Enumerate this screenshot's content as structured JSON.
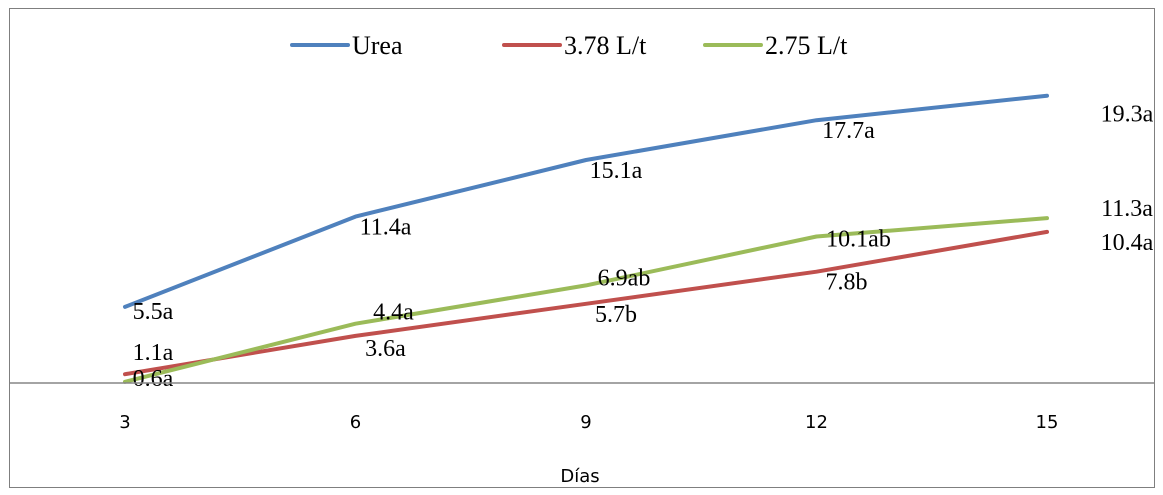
{
  "chart_data": {
    "type": "line",
    "title": "",
    "xlabel": "Días",
    "ylabel": "",
    "x": [
      3,
      6,
      9,
      12,
      15
    ],
    "x_tick_labels": [
      "3",
      "6",
      "9",
      "12",
      "15"
    ],
    "ylim": [
      0,
      20
    ],
    "grid": false,
    "legend_position": "top-center",
    "series": [
      {
        "name": "Urea",
        "color": "#4f81bd",
        "values": [
          5.5,
          11.4,
          15.1,
          17.7,
          19.3
        ],
        "labels": [
          "5.5a",
          "11.4a",
          "15.1a",
          "17.7a",
          "19.3a"
        ]
      },
      {
        "name": "3.78 L/t",
        "color": "#c0504d",
        "values": [
          1.1,
          3.6,
          5.7,
          7.8,
          10.4
        ],
        "labels": [
          "1.1a",
          "3.6a",
          "5.7b",
          "7.8b",
          "10.4a"
        ]
      },
      {
        "name": "2.75 L/t",
        "color": "#9bbb59",
        "values": [
          0.6,
          4.4,
          6.9,
          10.1,
          11.3
        ],
        "labels": [
          "0.6a",
          "4.4a",
          "6.9ab",
          "10.1ab",
          "11.3a"
        ]
      }
    ]
  }
}
